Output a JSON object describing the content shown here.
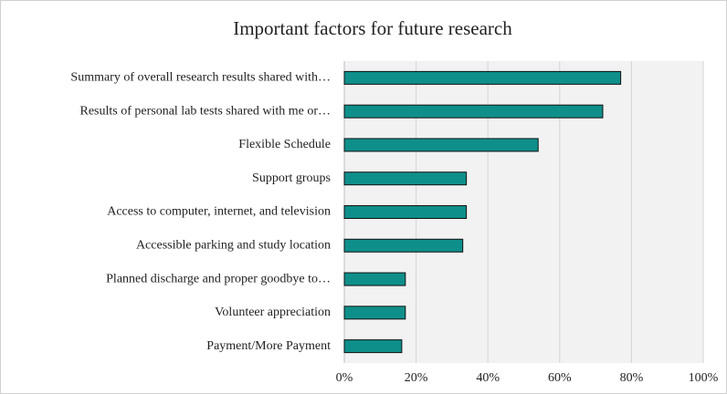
{
  "chart_data": {
    "type": "bar",
    "orientation": "horizontal",
    "title": "Important factors for future research",
    "categories": [
      "Summary of overall research results shared with…",
      "Results of personal lab tests shared with me or…",
      "Flexible Schedule",
      "Support groups",
      "Access to computer, internet, and television",
      "Accessible parking and study location",
      "Planned discharge and proper goodbye to…",
      "Volunteer appreciation",
      "Payment/More Payment"
    ],
    "values": [
      77,
      72,
      54,
      34,
      34,
      33,
      17,
      17,
      16
    ],
    "color": "#0f8f8a",
    "xlim": [
      0,
      100
    ],
    "xticks": [
      {
        "value": 0,
        "label": "0%"
      },
      {
        "value": 20,
        "label": "20%"
      },
      {
        "value": 40,
        "label": "40%"
      },
      {
        "value": 60,
        "label": "60%"
      },
      {
        "value": 80,
        "label": "80%"
      },
      {
        "value": 100,
        "label": "100%"
      }
    ],
    "grid": true
  }
}
